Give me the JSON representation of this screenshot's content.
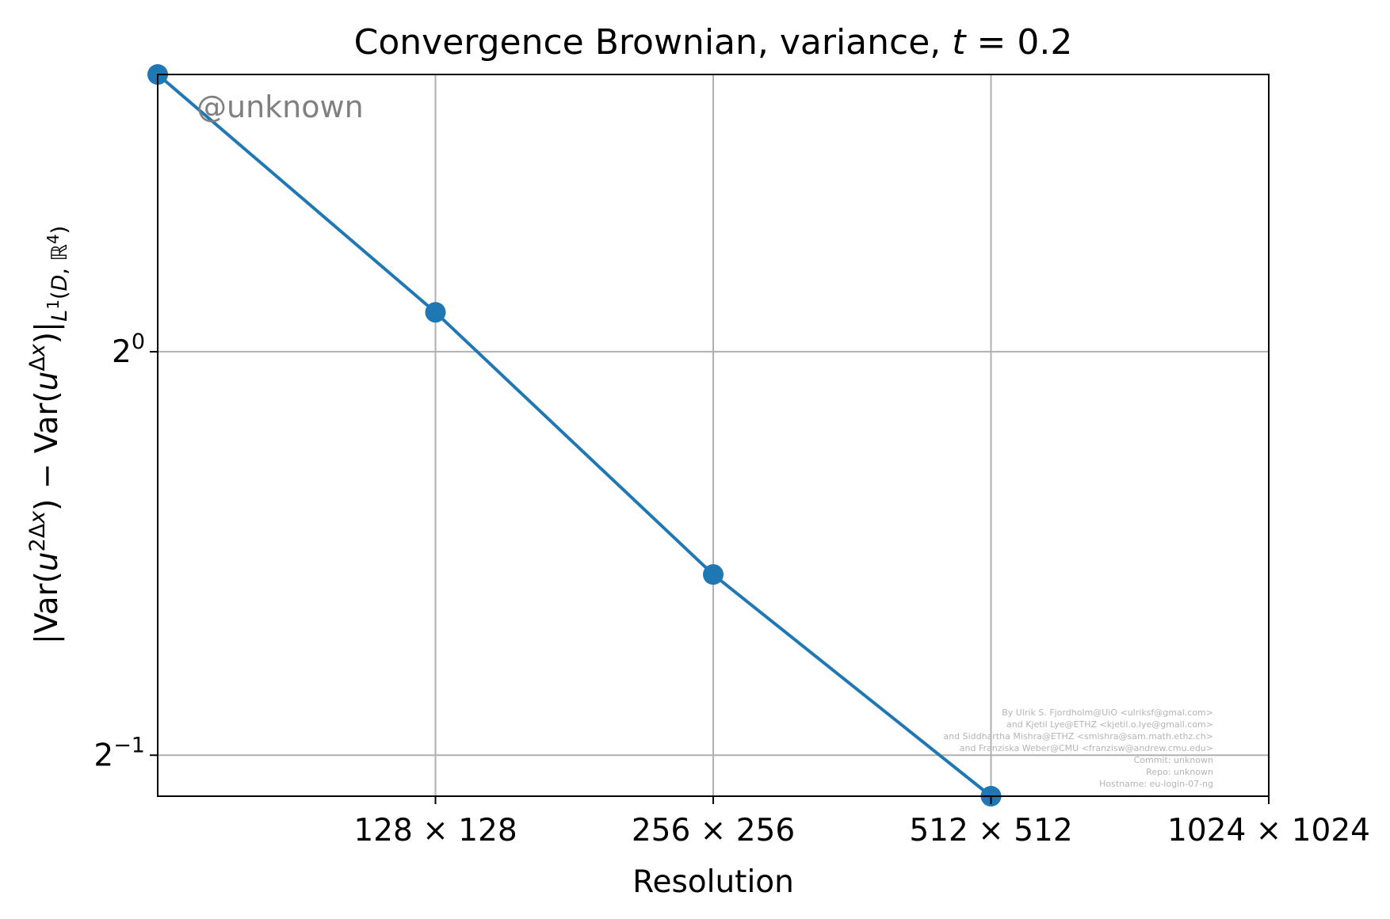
{
  "chart_data": {
    "type": "line",
    "title": "Convergence Brownian, variance, t = 0.2",
    "title_parts": {
      "main": "Convergence Brownian, variance, ",
      "var": "t",
      "rest": " = 0.2"
    },
    "xlabel": "Resolution",
    "ylabel": "|Var(u^{2Δx}) − Var(u^{Δx})|_{L^1(D, ℝ^4)}",
    "x_scale": "log2",
    "y_scale": "log2",
    "x": [
      64,
      128,
      256,
      512
    ],
    "y": [
      1.61,
      1.07,
      0.682,
      0.466
    ],
    "xlim": [
      64,
      1024
    ],
    "ylim": [
      0.466,
      1.61
    ],
    "x_ticks": [
      {
        "value": 128,
        "label": "128 × 128"
      },
      {
        "value": 256,
        "label": "256 × 256"
      },
      {
        "value": 512,
        "label": "512 × 512"
      },
      {
        "value": 1024,
        "label": "1024 × 1024"
      }
    ],
    "y_ticks": [
      {
        "value": 1,
        "base": "2",
        "exp": "0"
      },
      {
        "value": 0.5,
        "base": "2",
        "exp": "−1"
      }
    ],
    "series": [
      {
        "values": [
          1.61,
          1.07,
          0.682,
          0.466
        ],
        "color": "#1f77b4",
        "marker": "circle"
      }
    ],
    "grid": true,
    "watermark": "@unknown",
    "credits": [
      "By Ulrik S. Fjordholm@UiO <ulriksf@gmal.com>",
      "and Kjetil Lye@ETHZ <kjetil.o.lye@gmail.com>",
      "and Siddhartha Mishra@ETHZ <smishra@sam.math.ethz.ch>",
      "and Franziska Weber@CMU <franzisw@andrew.cmu.edu>",
      "Commit: unknown",
      "Repo: unknown",
      "Hostname: eu-login-07-ng"
    ]
  }
}
